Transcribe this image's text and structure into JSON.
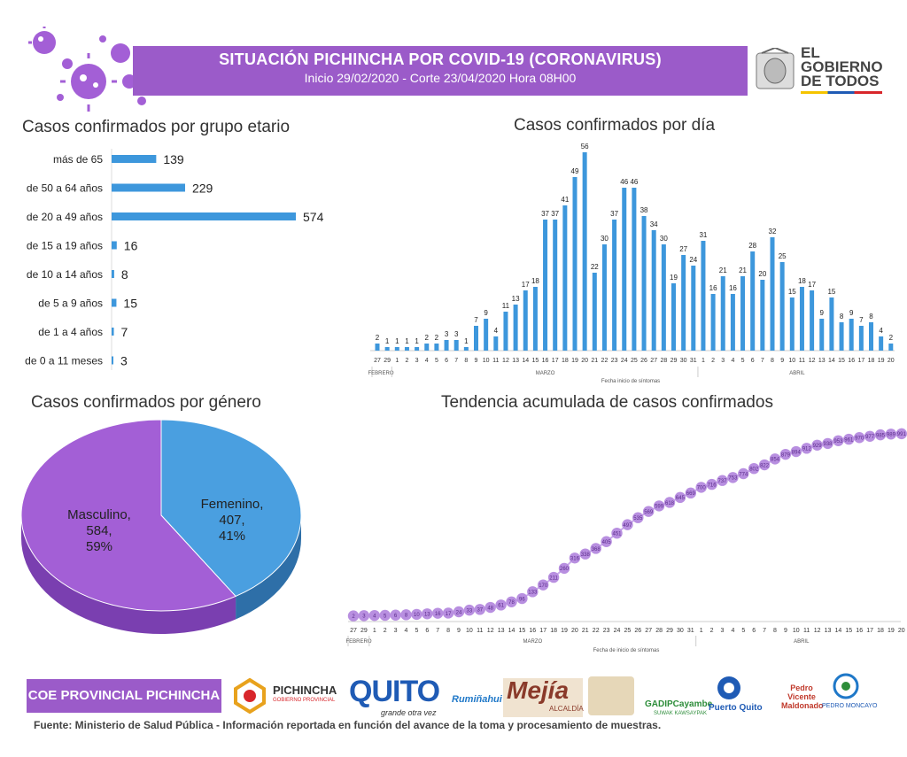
{
  "header": {
    "title": "SITUACIÓN PICHINCHA POR COVID-19 (CORONAVIRUS)",
    "subtitle": "Inicio 29/02/2020 - Corte 23/04/2020 Hora 08H00",
    "gov_logo_line1": "EL",
    "gov_logo_line2": "GOBIERNO",
    "gov_logo_line3": "DE TODOS"
  },
  "colors": {
    "purple": "#9b5bc9",
    "bar_blue": "#3d97dc",
    "pie_blue": "#4a9fe0",
    "pie_purple": "#a35fd6",
    "dot_purple": "#b88fe0"
  },
  "chart_data": [
    {
      "type": "bar",
      "orientation": "horizontal",
      "title": "Casos confirmados por grupo etario",
      "categories": [
        "más de 65",
        "de 50 a 64 años",
        "de 20 a 49 años",
        "de 15 a 19 años",
        "de 10 a 14 años",
        "de 5 a 9 años",
        "de 1 a 4 años",
        "de 0 a 11 meses"
      ],
      "values": [
        139,
        229,
        574,
        16,
        8,
        15,
        7,
        3
      ]
    },
    {
      "type": "bar",
      "title": "Casos confirmados por día",
      "xlabel": "Fecha inicio de síntomas",
      "month_labels": [
        "FEBRERO",
        "MARZO",
        "ABRIL"
      ],
      "categories": [
        "27",
        "29",
        "1",
        "2",
        "3",
        "4",
        "5",
        "6",
        "7",
        "8",
        "9",
        "10",
        "11",
        "12",
        "13",
        "14",
        "15",
        "16",
        "17",
        "18",
        "19",
        "20",
        "21",
        "22",
        "23",
        "24",
        "25",
        "26",
        "27",
        "28",
        "29",
        "30",
        "31",
        "1",
        "2",
        "3",
        "4",
        "5",
        "6",
        "7",
        "8",
        "9",
        "10",
        "11",
        "12",
        "13",
        "14",
        "15",
        "16",
        "17",
        "18",
        "19",
        "20"
      ],
      "values": [
        2,
        1,
        1,
        1,
        1,
        2,
        2,
        3,
        3,
        1,
        7,
        9,
        4,
        11,
        13,
        17,
        18,
        37,
        37,
        41,
        49,
        56,
        22,
        30,
        37,
        46,
        46,
        38,
        34,
        30,
        19,
        27,
        24,
        31,
        16,
        21,
        16,
        21,
        28,
        20,
        32,
        25,
        15,
        18,
        17,
        9,
        15,
        8,
        9,
        7,
        8,
        4,
        2
      ]
    },
    {
      "type": "pie",
      "title": "Casos confirmados por género",
      "slices": [
        {
          "label": "Femenino,",
          "value": 407,
          "percent": "41%"
        },
        {
          "label": "Masculino,",
          "value": 584,
          "percent": "59%"
        }
      ]
    },
    {
      "type": "line",
      "title": "Tendencia acumulada de casos confirmados",
      "xlabel": "Fecha de inicio de síntomas",
      "month_labels": [
        "FEBRERO",
        "MARZO",
        "ABRIL"
      ],
      "categories": [
        "27",
        "29",
        "1",
        "2",
        "3",
        "4",
        "5",
        "6",
        "7",
        "8",
        "9",
        "10",
        "11",
        "12",
        "13",
        "14",
        "15",
        "16",
        "17",
        "18",
        "19",
        "20",
        "21",
        "22",
        "23",
        "24",
        "25",
        "26",
        "27",
        "28",
        "29",
        "30",
        "31",
        "1",
        "2",
        "3",
        "4",
        "5",
        "6",
        "7",
        "8",
        "9",
        "10",
        "11",
        "12",
        "13",
        "14",
        "15",
        "16",
        "17",
        "18",
        "19",
        "20"
      ],
      "values": [
        2,
        3,
        4,
        5,
        6,
        8,
        10,
        13,
        16,
        17,
        24,
        33,
        37,
        48,
        61,
        78,
        96,
        133,
        170,
        211,
        260,
        316,
        338,
        368,
        405,
        451,
        497,
        535,
        569,
        599,
        618,
        645,
        669,
        700,
        716,
        737,
        753,
        774,
        802,
        822,
        854,
        879,
        894,
        912,
        929,
        938,
        953,
        961,
        970,
        977,
        985,
        989,
        991
      ]
    }
  ],
  "footer": {
    "coe_label": "COE PROVINCIAL PICHINCHA",
    "source": "Fuente: Ministerio de Salud Pública - Información reportada en función del avance de la toma y procesamiento de muestras.",
    "logos": [
      "PICHINCHA",
      "GOBIERNO PROVINCIAL",
      "QUITO",
      "grande otra vez",
      "Rumiñahui",
      "Mejía",
      "ALCALDÍA",
      "GADIPCayambe",
      "SUWAK KAWSAYPAK",
      "Puerto Quito",
      "Pedro Vicente Maldonado",
      "PEDRO MONCAYO"
    ]
  }
}
